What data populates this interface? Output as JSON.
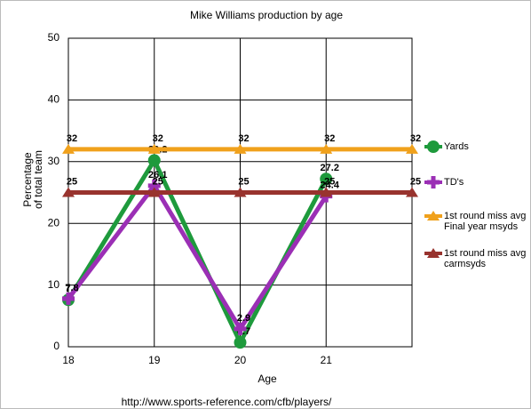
{
  "chart_data": {
    "type": "line",
    "title": "Mike Williams production by age",
    "x_label": "Age",
    "y_label": "Percentage of total team",
    "source": "http://www.sports-reference.com/cfb/players/",
    "categories": [
      "18",
      "19",
      "20",
      "21",
      null
    ],
    "ylim": [
      0,
      50
    ],
    "yticks": [
      0,
      10,
      20,
      30,
      40,
      50
    ],
    "grid": true,
    "legend": "right",
    "series": [
      {
        "name": "Yards",
        "color": "#1e9a3c",
        "marker": "circle",
        "values": [
          7.6,
          30.2,
          0.7,
          27.2,
          null
        ]
      },
      {
        "name": "TD's",
        "color": "#9b2fb5",
        "marker": "plus",
        "values": [
          7.8,
          26.1,
          2.9,
          24.4,
          null
        ]
      },
      {
        "name": "1st round miss avg Final year msyds",
        "color": "#f0a11c",
        "marker": "triangle",
        "values": [
          32,
          32,
          32,
          32,
          32
        ]
      },
      {
        "name": "1st round miss avg carmsyds",
        "color": "#98332e",
        "marker": "triangle",
        "values": [
          25,
          25,
          25,
          25,
          25
        ]
      }
    ]
  }
}
